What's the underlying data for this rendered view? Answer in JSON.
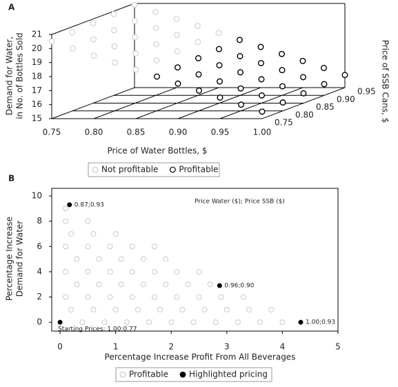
{
  "chart_data": [
    {
      "type": "scatter3d",
      "panel": "A",
      "xlabel": "Price of Water Bottles, $",
      "ylabel": "Price of SSB Cans, $",
      "zlabel": [
        "Demand for Water,",
        "in No. of Bottles Sold"
      ],
      "xlim": [
        0.75,
        1.0
      ],
      "xticks": [
        {
          "value": 0.75,
          "label": "0.75"
        },
        {
          "value": 0.8,
          "label": "0.80"
        },
        {
          "value": 0.85,
          "label": "0.85"
        },
        {
          "value": 0.9,
          "label": "0.90"
        },
        {
          "value": 0.95,
          "label": "0.95"
        },
        {
          "value": 1.0,
          "label": "1.00"
        }
      ],
      "ylim": [
        0.75,
        0.95
      ],
      "yticks": [
        {
          "value": 0.75,
          "label": "0.75"
        },
        {
          "value": 0.8,
          "label": "0.80"
        },
        {
          "value": 0.85,
          "label": "0.85"
        },
        {
          "value": 0.9,
          "label": "0.90"
        },
        {
          "value": 0.95,
          "label": "0.95"
        }
      ],
      "zlim": [
        15,
        21
      ],
      "zticks": [
        15,
        16,
        17,
        18,
        19,
        20,
        21
      ],
      "legend": "bottom",
      "series": [
        {
          "name": "Not profitable",
          "color": "#c8c8c8",
          "x": [
            0.75,
            0.775,
            0.8,
            0.825,
            0.85,
            0.75,
            0.775,
            0.8,
            0.825,
            0.85,
            0.75,
            0.775,
            0.8,
            0.825,
            0.85,
            0.75,
            0.775,
            0.8,
            0.825,
            0.85,
            0.75,
            0.775,
            0.8,
            0.825,
            0.85
          ],
          "y": [
            0.75,
            0.75,
            0.75,
            0.75,
            0.75,
            0.8,
            0.8,
            0.8,
            0.8,
            0.8,
            0.85,
            0.85,
            0.85,
            0.85,
            0.85,
            0.9,
            0.9,
            0.9,
            0.9,
            0.9,
            0.95,
            0.95,
            0.95,
            0.95,
            0.95
          ],
          "z": [
            20.5,
            20,
            19.5,
            19,
            18.5,
            20.6,
            20.1,
            19.6,
            19.1,
            18.6,
            20.7,
            20.2,
            19.7,
            19.2,
            18.7,
            20.8,
            20.3,
            19.8,
            19.3,
            18.8,
            20.9,
            20.4,
            19.9,
            19.4,
            18.9
          ]
        },
        {
          "name": "Profitable",
          "color": "#000000",
          "x": [
            0.875,
            0.9,
            0.925,
            0.95,
            0.975,
            1.0,
            0.875,
            0.9,
            0.925,
            0.95,
            0.975,
            1.0,
            0.875,
            0.9,
            0.925,
            0.95,
            0.975,
            1.0,
            0.875,
            0.9,
            0.925,
            0.95,
            0.975,
            1.0,
            0.875,
            0.9,
            0.925,
            0.95,
            0.975,
            1.0
          ],
          "y": [
            0.75,
            0.75,
            0.75,
            0.75,
            0.75,
            0.75,
            0.8,
            0.8,
            0.8,
            0.8,
            0.8,
            0.8,
            0.85,
            0.85,
            0.85,
            0.85,
            0.85,
            0.85,
            0.9,
            0.9,
            0.9,
            0.9,
            0.9,
            0.9,
            0.95,
            0.95,
            0.95,
            0.95,
            0.95,
            0.95
          ],
          "z": [
            18,
            17.5,
            17,
            16.5,
            16,
            15.5,
            18.1,
            17.6,
            17.1,
            16.6,
            16.1,
            15.6,
            18.2,
            17.7,
            17.2,
            16.7,
            16.2,
            15.7,
            18.3,
            17.8,
            17.3,
            16.8,
            16.3,
            15.8,
            18.4,
            17.9,
            17.4,
            16.9,
            16.4,
            15.9
          ]
        }
      ]
    },
    {
      "type": "scatter",
      "panel": "B",
      "xlabel": "Percentage Increase Profit From All Beverages",
      "ylabel": [
        "Percentage Increase",
        "Demand for Water"
      ],
      "annotation": "Price Water ($); Price SSB ($)",
      "xlim": [
        -0.15,
        5
      ],
      "xticks": [
        0,
        1,
        2,
        3,
        4,
        5
      ],
      "ylim": [
        -0.7,
        10.6
      ],
      "yticks": [
        0,
        2,
        4,
        6,
        8,
        10
      ],
      "legend": "bottom",
      "series": [
        {
          "name": "Profitable",
          "color": "#c8c8c8",
          "x": [
            0.4,
            0.8,
            1.2,
            1.6,
            2.0,
            2.4,
            2.8,
            3.2,
            3.6,
            4.0,
            0.2,
            0.6,
            1.0,
            1.4,
            1.8,
            2.2,
            2.6,
            3.0,
            3.4,
            3.8,
            0.1,
            0.5,
            0.9,
            1.3,
            1.7,
            2.1,
            2.5,
            2.9,
            3.3,
            0.3,
            0.7,
            1.1,
            1.5,
            1.9,
            2.3,
            2.7,
            0.1,
            0.5,
            0.9,
            1.3,
            1.7,
            2.1,
            2.5,
            0.3,
            0.7,
            1.1,
            1.5,
            1.9,
            0.1,
            0.5,
            0.9,
            1.3,
            1.7,
            0.2,
            0.6,
            1.0,
            0.1,
            0.5,
            0.1
          ],
          "y": [
            0,
            0,
            0,
            0,
            0,
            0,
            0,
            0,
            0,
            0,
            1,
            1,
            1,
            1,
            1,
            1,
            1,
            1,
            1,
            1,
            2,
            2,
            2,
            2,
            2,
            2,
            2,
            2,
            2,
            3,
            3,
            3,
            3,
            3,
            3,
            3,
            4,
            4,
            4,
            4,
            4,
            4,
            4,
            5,
            5,
            5,
            5,
            5,
            6,
            6,
            6,
            6,
            6,
            7,
            7,
            7,
            8,
            8,
            9
          ]
        },
        {
          "name": "Highlighted pricing",
          "color": "#000000",
          "x": [
            0.17,
            2.87,
            4.33,
            0
          ],
          "y": [
            9.3,
            2.9,
            0,
            0
          ],
          "labels": [
            "0.87;0.93",
            "0.96;0.90",
            "1.00;0.93",
            "Starting Prices: 1.00;0.77"
          ]
        }
      ]
    }
  ]
}
